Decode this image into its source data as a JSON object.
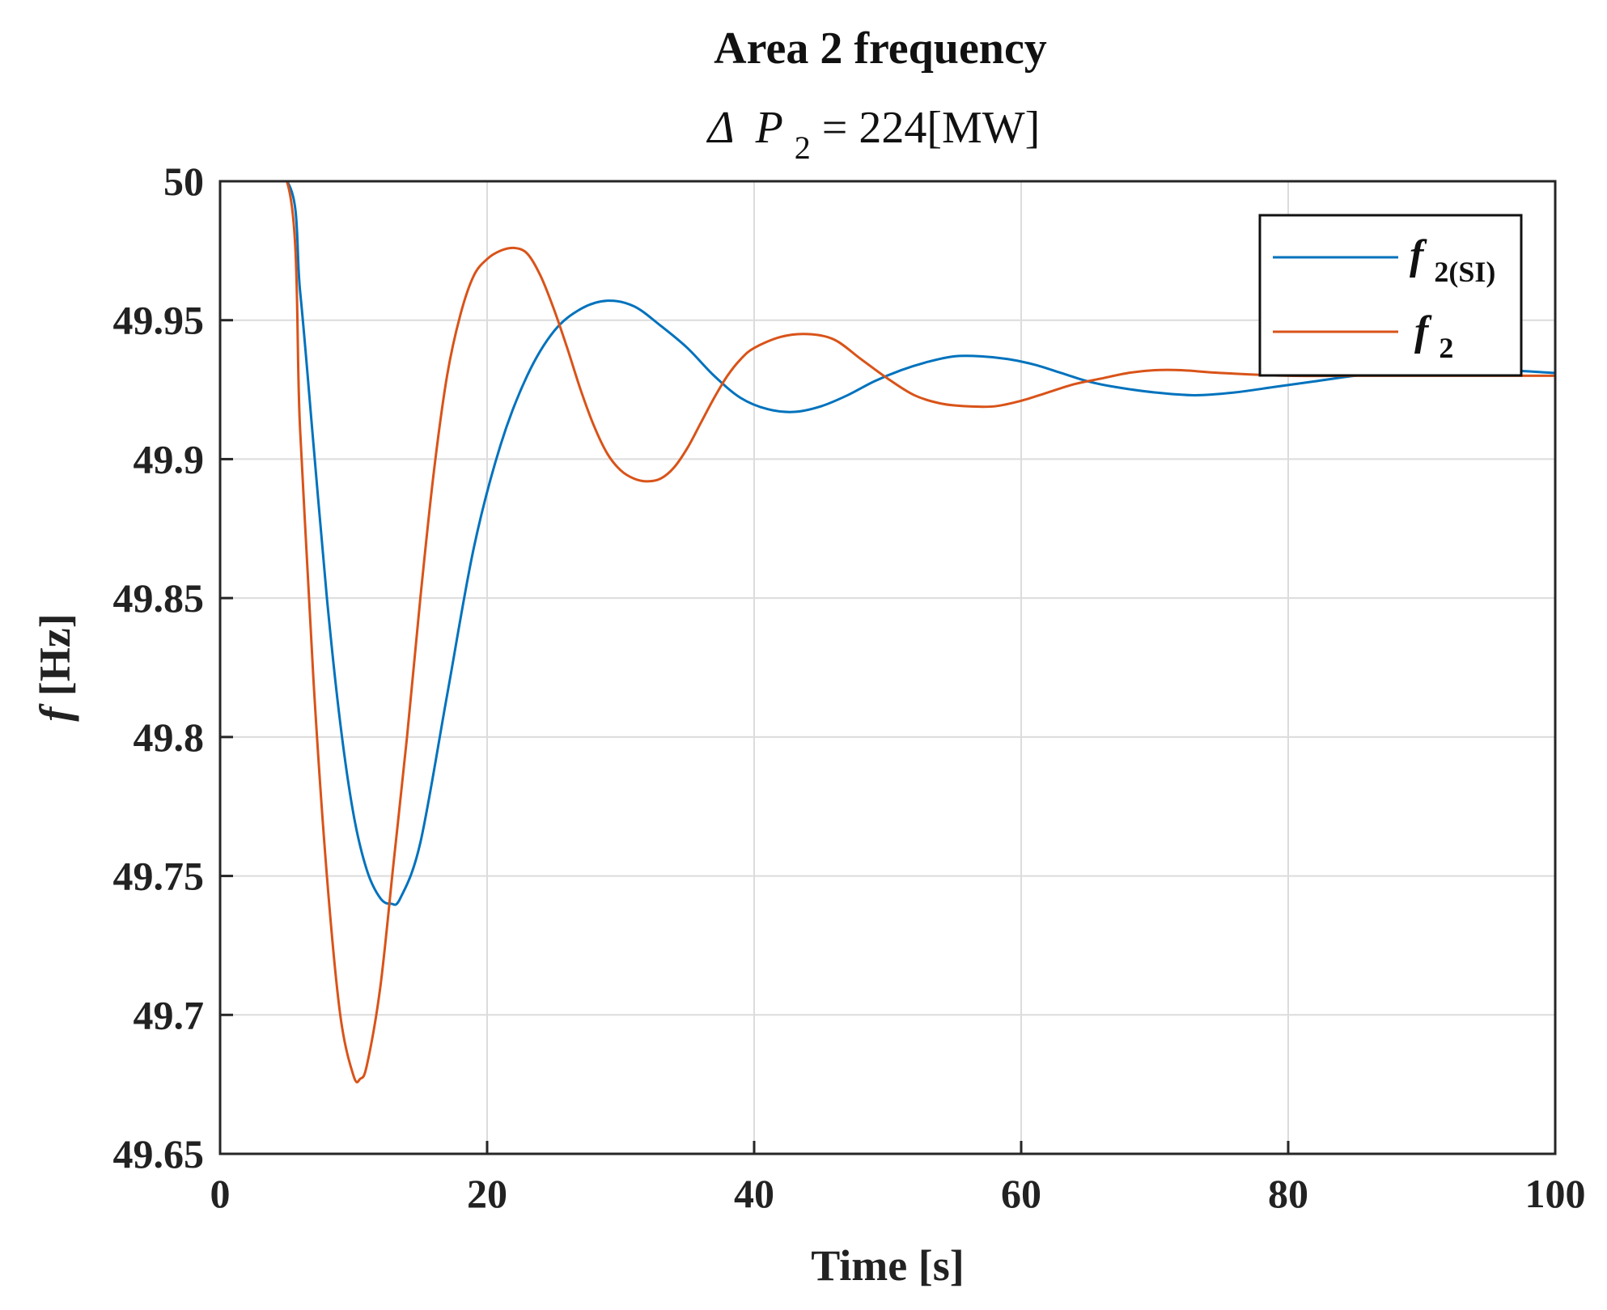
{
  "chart_data": {
    "type": "line",
    "title": "Area 2 frequency",
    "subtitle": {
      "prefix": "Δ",
      "var": "P",
      "sub": "2",
      "rest": "= 224[MW]"
    },
    "xlabel": "Time [s]",
    "ylabel": {
      "var": "f",
      "rest": " [Hz]"
    },
    "xlim": [
      0,
      100
    ],
    "ylim": [
      49.65,
      50
    ],
    "xticks": [
      0,
      20,
      40,
      60,
      80,
      100
    ],
    "xtick_labels": [
      "0",
      "20",
      "40",
      "60",
      "80",
      "100"
    ],
    "yticks": [
      49.65,
      49.7,
      49.75,
      49.8,
      49.85,
      49.9,
      49.95,
      50
    ],
    "ytick_labels": [
      "49.65",
      "49.7",
      "49.75",
      "49.8",
      "49.85",
      "49.9",
      "49.95",
      "50"
    ],
    "grid": true,
    "legend_position": "top-right",
    "series": [
      {
        "name": "f2(SI)",
        "label_var": "f",
        "label_sub": "2(SI)",
        "color": "#0072BD",
        "points": [
          [
            0,
            50
          ],
          [
            5,
            50
          ],
          [
            6,
            49.96
          ],
          [
            7,
            49.905
          ],
          [
            8,
            49.85
          ],
          [
            9,
            49.805
          ],
          [
            10,
            49.772
          ],
          [
            11,
            49.752
          ],
          [
            12,
            49.742
          ],
          [
            12.8,
            49.74
          ],
          [
            13.5,
            49.742
          ],
          [
            15,
            49.762
          ],
          [
            17,
            49.815
          ],
          [
            19,
            49.868
          ],
          [
            21,
            49.905
          ],
          [
            23,
            49.93
          ],
          [
            25,
            49.946
          ],
          [
            27,
            49.954
          ],
          [
            29,
            49.957
          ],
          [
            31,
            49.955
          ],
          [
            33,
            49.948
          ],
          [
            35,
            49.94
          ],
          [
            37,
            49.93
          ],
          [
            39,
            49.922
          ],
          [
            41,
            49.918
          ],
          [
            43,
            49.917
          ],
          [
            45,
            49.919
          ],
          [
            47,
            49.923
          ],
          [
            49,
            49.928
          ],
          [
            51,
            49.932
          ],
          [
            53,
            49.935
          ],
          [
            55,
            49.937
          ],
          [
            57,
            49.937
          ],
          [
            59,
            49.936
          ],
          [
            61,
            49.934
          ],
          [
            63,
            49.931
          ],
          [
            65,
            49.928
          ],
          [
            67,
            49.926
          ],
          [
            70,
            49.924
          ],
          [
            73,
            49.923
          ],
          [
            76,
            49.924
          ],
          [
            79,
            49.926
          ],
          [
            82,
            49.928
          ],
          [
            85,
            49.93
          ],
          [
            88,
            49.931
          ],
          [
            92,
            49.932
          ],
          [
            96,
            49.932
          ],
          [
            100,
            49.931
          ]
        ]
      },
      {
        "name": "f2",
        "label_var": "f",
        "label_sub": "2",
        "color": "#D95319",
        "points": [
          [
            0,
            50
          ],
          [
            5,
            50
          ],
          [
            6,
            49.91
          ],
          [
            7,
            49.82
          ],
          [
            8,
            49.75
          ],
          [
            9,
            49.7
          ],
          [
            10,
            49.678
          ],
          [
            10.5,
            49.677
          ],
          [
            11,
            49.682
          ],
          [
            12,
            49.71
          ],
          [
            13,
            49.755
          ],
          [
            14,
            49.8
          ],
          [
            15,
            49.85
          ],
          [
            16,
            49.895
          ],
          [
            17,
            49.93
          ],
          [
            18,
            49.952
          ],
          [
            19,
            49.966
          ],
          [
            20,
            49.972
          ],
          [
            21,
            49.975
          ],
          [
            22,
            49.976
          ],
          [
            23,
            49.974
          ],
          [
            24,
            49.966
          ],
          [
            25,
            49.954
          ],
          [
            26,
            49.94
          ],
          [
            27,
            49.925
          ],
          [
            28,
            49.912
          ],
          [
            29,
            49.902
          ],
          [
            30,
            49.896
          ],
          [
            31,
            49.893
          ],
          [
            32,
            49.892
          ],
          [
            33,
            49.893
          ],
          [
            34,
            49.897
          ],
          [
            35,
            49.904
          ],
          [
            36,
            49.913
          ],
          [
            37,
            49.922
          ],
          [
            38,
            49.93
          ],
          [
            39,
            49.936
          ],
          [
            40,
            49.94
          ],
          [
            42,
            49.944
          ],
          [
            44,
            49.945
          ],
          [
            46,
            49.943
          ],
          [
            48,
            49.936
          ],
          [
            50,
            49.929
          ],
          [
            52,
            49.923
          ],
          [
            54,
            49.92
          ],
          [
            56,
            49.919
          ],
          [
            58,
            49.919
          ],
          [
            60,
            49.921
          ],
          [
            62,
            49.924
          ],
          [
            64,
            49.927
          ],
          [
            66,
            49.929
          ],
          [
            68,
            49.931
          ],
          [
            70,
            49.932
          ],
          [
            72,
            49.932
          ],
          [
            75,
            49.931
          ],
          [
            80,
            49.93
          ],
          [
            85,
            49.93
          ],
          [
            90,
            49.93
          ],
          [
            95,
            49.93
          ],
          [
            100,
            49.93
          ]
        ]
      }
    ]
  }
}
